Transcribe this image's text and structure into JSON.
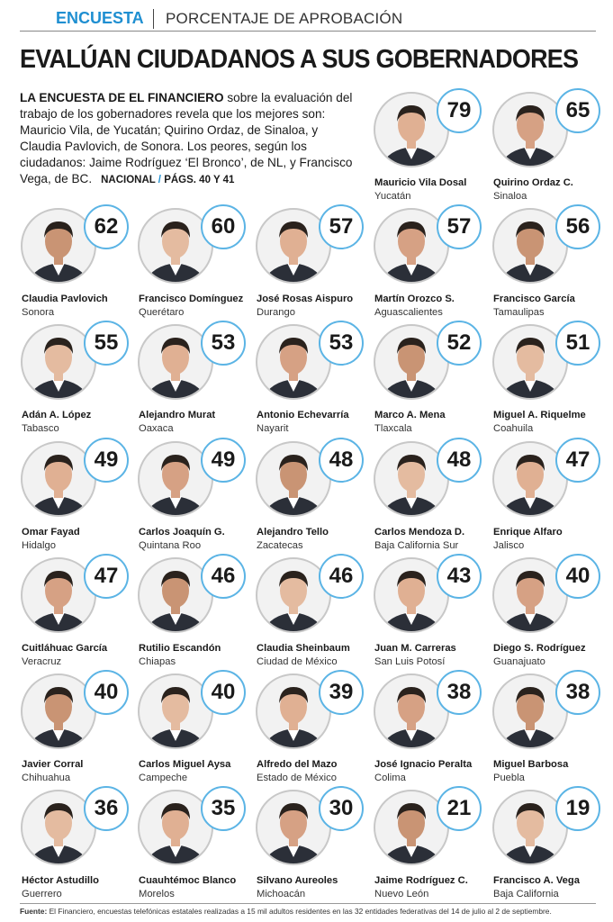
{
  "header": {
    "tag": "ENCUESTA",
    "section": "PORCENTAJE DE APROBACIÓN",
    "title": "EVALÚAN CIUDADANOS A SUS GOBERNADORES"
  },
  "intro": {
    "lead": "LA ENCUESTA DE EL FINANCIERO",
    "text": "sobre la evaluación del trabajo de los gobernadores revela que los mejores son: Mauricio Vila, de Yucatán; Quirino Ordaz, de Sinaloa, y Claudia Pavlovich, de Sonora. Los peores, según los ciudadanos:  Jaime Rodríguez ‘El Bronco’, de NL, y Francisco Vega, de BC.",
    "ref_section": "NACIONAL",
    "ref_separator": "/",
    "ref_pages": "PÁGS. 40 Y 41"
  },
  "governors": [
    {
      "name": "Mauricio Vila Dosal",
      "state": "Yucatán",
      "score": 79
    },
    {
      "name": "Quirino Ordaz C.",
      "state": "Sinaloa",
      "score": 65
    },
    {
      "name": "Claudia Pavlovich",
      "state": "Sonora",
      "score": 62
    },
    {
      "name": "Francisco Domínguez",
      "state": "Querétaro",
      "score": 60
    },
    {
      "name": "José Rosas Aispuro",
      "state": "Durango",
      "score": 57
    },
    {
      "name": "Martín Orozco S.",
      "state": "Aguascalientes",
      "score": 57
    },
    {
      "name": "Francisco García",
      "state": "Tamaulipas",
      "score": 56
    },
    {
      "name": "Adán A. López",
      "state": "Tabasco",
      "score": 55
    },
    {
      "name": "Alejandro Murat",
      "state": "Oaxaca",
      "score": 53
    },
    {
      "name": "Antonio Echevarría",
      "state": "Nayarit",
      "score": 53
    },
    {
      "name": "Marco A. Mena",
      "state": "Tlaxcala",
      "score": 52
    },
    {
      "name": "Miguel A. Riquelme",
      "state": "Coahuila",
      "score": 51
    },
    {
      "name": "Omar Fayad",
      "state": "Hidalgo",
      "score": 49
    },
    {
      "name": "Carlos Joaquín G.",
      "state": "Quintana Roo",
      "score": 49
    },
    {
      "name": "Alejandro Tello",
      "state": "Zacatecas",
      "score": 48
    },
    {
      "name": "Carlos Mendoza D.",
      "state": "Baja California Sur",
      "score": 48
    },
    {
      "name": "Enrique Alfaro",
      "state": "Jalisco",
      "score": 47
    },
    {
      "name": "Cuitláhuac García",
      "state": "Veracruz",
      "score": 47
    },
    {
      "name": "Rutilio Escandón",
      "state": "Chiapas",
      "score": 46
    },
    {
      "name": "Claudia Sheinbaum",
      "state": "Ciudad de México",
      "score": 46
    },
    {
      "name": "Juan M. Carreras",
      "state": "San Luis Potosí",
      "score": 43
    },
    {
      "name": "Diego S. Rodríguez",
      "state": "Guanajuato",
      "score": 40
    },
    {
      "name": "Javier Corral",
      "state": "Chihuahua",
      "score": 40
    },
    {
      "name": "Carlos Miguel Aysa",
      "state": "Campeche",
      "score": 40
    },
    {
      "name": "Alfredo del Mazo",
      "state": "Estado de México",
      "score": 39
    },
    {
      "name": "José Ignacio Peralta",
      "state": "Colima",
      "score": 38
    },
    {
      "name": "Miguel Barbosa",
      "state": "Puebla",
      "score": 38
    },
    {
      "name": "Héctor Astudillo",
      "state": "Guerrero",
      "score": 36
    },
    {
      "name": "Cuauhtémoc Blanco",
      "state": "Morelos",
      "score": 35
    },
    {
      "name": "Silvano Aureoles",
      "state": "Michoacán",
      "score": 30
    },
    {
      "name": "Jaime Rodríguez C.",
      "state": "Nuevo León",
      "score": 21
    },
    {
      "name": "Francisco A. Vega",
      "state": "Baja California",
      "score": 19
    }
  ],
  "footer": {
    "label": "Fuente:",
    "text": "El Financiero, encuestas telefónicas estatales realizadas a 15 mil adultos residentes en las 32 entidades federativas del 14 de julio al 2 de septiembre."
  }
}
